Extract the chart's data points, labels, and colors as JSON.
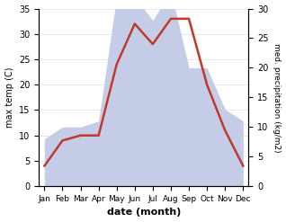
{
  "months": [
    "Jan",
    "Feb",
    "Mar",
    "Apr",
    "May",
    "Jun",
    "Jul",
    "Aug",
    "Sep",
    "Oct",
    "Nov",
    "Dec"
  ],
  "temperature": [
    4,
    9,
    10,
    10,
    24,
    32,
    28,
    33,
    33,
    20,
    11,
    4
  ],
  "precipitation": [
    8,
    10,
    10,
    11,
    32,
    32,
    28,
    33,
    20,
    20,
    13,
    11
  ],
  "temp_color": "#c0392b",
  "precip_fill_color": "#c5cce8",
  "temp_ylim": [
    0,
    35
  ],
  "precip_ylim": [
    0,
    30
  ],
  "scale_factor": 1.1667,
  "xlabel": "date (month)",
  "ylabel_left": "max temp (C)",
  "ylabel_right": "med. precipitation (kg/m2)",
  "bg_color": "#ffffff",
  "grid_color": "#dddddd"
}
